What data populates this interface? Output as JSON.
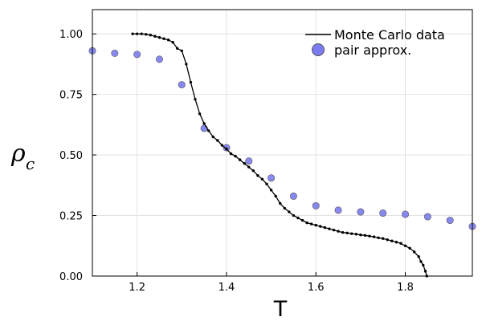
{
  "chart_data": {
    "type": "scatter",
    "xlabel": "T",
    "ylabel": "ρ",
    "ylabel_subscript": "c",
    "xlim": [
      1.1,
      1.95
    ],
    "ylim": [
      0.0,
      1.1
    ],
    "xticks": [
      1.2,
      1.4,
      1.6,
      1.8
    ],
    "xtick_labels": [
      "1.2",
      "1.4",
      "1.6",
      "1.8"
    ],
    "yticks": [
      0.0,
      0.25,
      0.5,
      0.75,
      1.0
    ],
    "ytick_labels": [
      "0.00",
      "0.25",
      "0.50",
      "0.75",
      "1.00"
    ],
    "grid": true,
    "legend_position": "top-right",
    "series": [
      {
        "name": "Monte Carlo data",
        "kind": "line-with-markers",
        "color": "#000000",
        "x": [
          1.19,
          1.2,
          1.21,
          1.22,
          1.23,
          1.24,
          1.25,
          1.26,
          1.27,
          1.28,
          1.29,
          1.3,
          1.31,
          1.32,
          1.33,
          1.34,
          1.35,
          1.36,
          1.37,
          1.38,
          1.39,
          1.4,
          1.41,
          1.42,
          1.43,
          1.44,
          1.45,
          1.46,
          1.47,
          1.48,
          1.49,
          1.5,
          1.51,
          1.52,
          1.53,
          1.54,
          1.55,
          1.56,
          1.57,
          1.58,
          1.59,
          1.6,
          1.61,
          1.62,
          1.63,
          1.64,
          1.65,
          1.66,
          1.67,
          1.68,
          1.69,
          1.7,
          1.71,
          1.72,
          1.73,
          1.74,
          1.75,
          1.76,
          1.77,
          1.78,
          1.79,
          1.8,
          1.81,
          1.82,
          1.83,
          1.835,
          1.84,
          1.845,
          1.848
        ],
        "y": [
          1.0,
          1.0,
          1.0,
          0.998,
          0.995,
          0.99,
          0.985,
          0.98,
          0.975,
          0.965,
          0.94,
          0.93,
          0.875,
          0.8,
          0.73,
          0.67,
          0.63,
          0.6,
          0.575,
          0.56,
          0.54,
          0.525,
          0.505,
          0.495,
          0.48,
          0.465,
          0.45,
          0.435,
          0.415,
          0.4,
          0.38,
          0.355,
          0.33,
          0.3,
          0.28,
          0.265,
          0.25,
          0.24,
          0.23,
          0.22,
          0.215,
          0.21,
          0.205,
          0.2,
          0.195,
          0.19,
          0.185,
          0.18,
          0.178,
          0.175,
          0.173,
          0.17,
          0.168,
          0.165,
          0.162,
          0.158,
          0.155,
          0.15,
          0.145,
          0.14,
          0.135,
          0.125,
          0.115,
          0.1,
          0.08,
          0.06,
          0.045,
          0.02,
          0.0
        ]
      },
      {
        "name": "pair approx.",
        "kind": "scatter",
        "color": "#7b7bf0",
        "x": [
          1.1,
          1.15,
          1.2,
          1.25,
          1.3,
          1.35,
          1.4,
          1.45,
          1.5,
          1.55,
          1.6,
          1.65,
          1.7,
          1.75,
          1.8,
          1.85,
          1.9,
          1.95
        ],
        "y": [
          0.93,
          0.92,
          0.915,
          0.895,
          0.79,
          0.61,
          0.53,
          0.475,
          0.405,
          0.33,
          0.29,
          0.272,
          0.265,
          0.26,
          0.255,
          0.245,
          0.23,
          0.205
        ]
      }
    ]
  }
}
